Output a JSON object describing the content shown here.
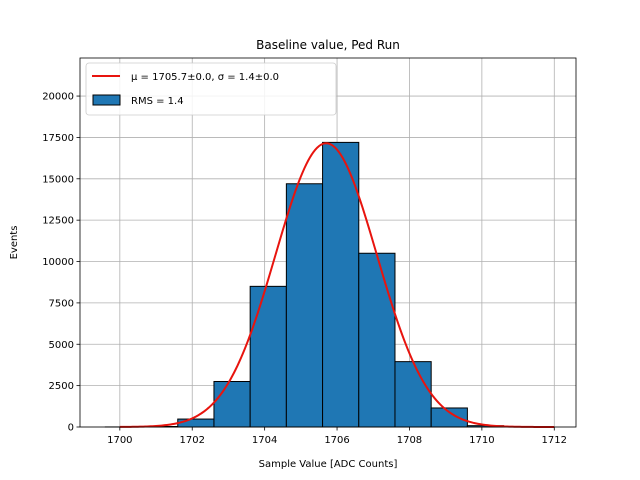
{
  "chart_data": {
    "type": "bar",
    "title": "Baseline value, Ped Run",
    "xlabel": "Sample Value [ADC Counts]",
    "ylabel": "Events",
    "xlim": [
      1698.9,
      1712.6
    ],
    "ylim": [
      0,
      22300
    ],
    "xticks": [
      1700,
      1702,
      1704,
      1706,
      1708,
      1710,
      1712
    ],
    "yticks": [
      0,
      2500,
      5000,
      7500,
      10000,
      12500,
      15000,
      17500,
      20000
    ],
    "grid": true,
    "legend_position": "top-left",
    "bin_edges": [
      1699.6,
      1700.6,
      1701.6,
      1702.6,
      1703.6,
      1704.6,
      1705.6,
      1706.6,
      1707.6,
      1708.6,
      1709.6,
      1710.6,
      1711.6
    ],
    "values": [
      3,
      30,
      480,
      2750,
      8500,
      14700,
      17200,
      10500,
      3950,
      1150,
      80,
      3
    ],
    "fit": {
      "mu": 1705.7,
      "sigma": 1.4,
      "amplitude": 17150,
      "x_range": [
        1700,
        1712
      ]
    },
    "series": [
      {
        "name": "μ = 1705.7±0.0, σ = 1.4±0.0",
        "kind": "line",
        "color": "#e8140e"
      },
      {
        "name": "RMS = 1.4",
        "kind": "histogram",
        "color": "#1f77b4"
      }
    ]
  },
  "legend": {
    "fit_label": "μ = 1705.7±0.0, σ = 1.4±0.0",
    "hist_label": "RMS = 1.4"
  }
}
